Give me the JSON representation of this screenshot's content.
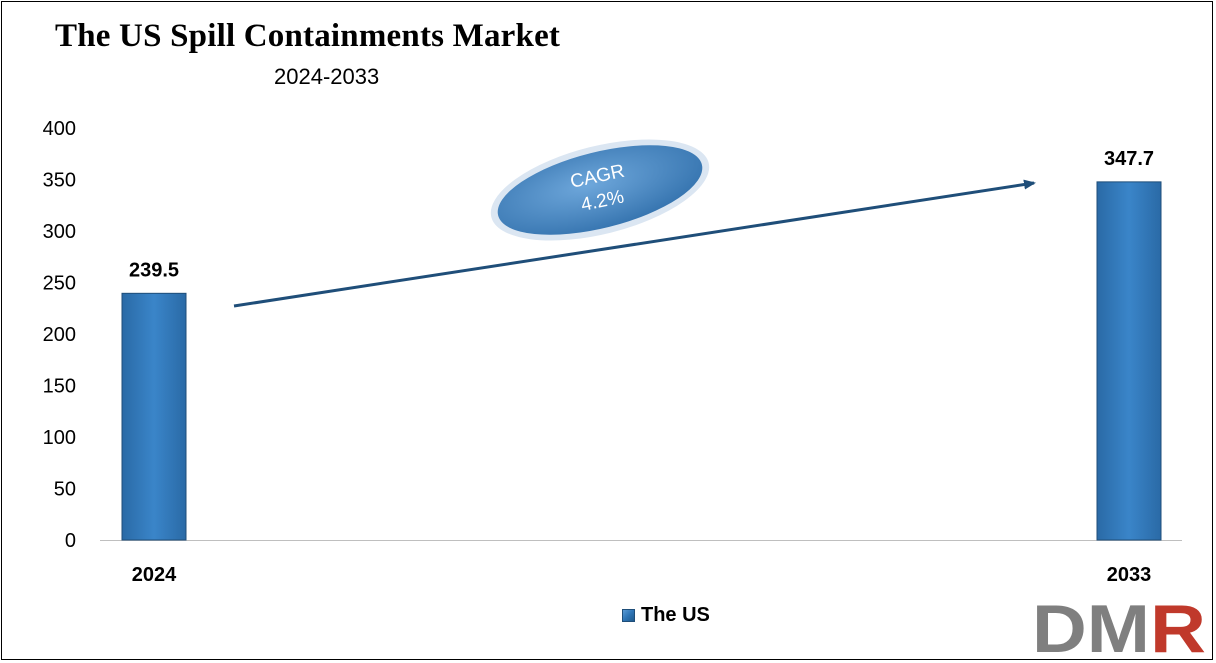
{
  "chart_data": {
    "type": "bar",
    "title": "The US Spill Containments Market",
    "subtitle": "2024-2033",
    "categories": [
      "2024",
      "2033"
    ],
    "series": [
      {
        "name": "The US",
        "values": [
          239.5,
          347.7
        ]
      }
    ],
    "data_labels": [
      "239.5",
      "347.7"
    ],
    "ylim": [
      0,
      400
    ],
    "yticks": [
      0,
      50,
      100,
      150,
      200,
      250,
      300,
      350,
      400
    ],
    "grid": false,
    "legend_position": "bottom",
    "annotation": {
      "line1": "CAGR",
      "line2": "4.2%"
    }
  },
  "colors": {
    "bar": "#2e75b6",
    "bar_dark": "#1f4e79",
    "arrow": "#1f4e79",
    "ellipse": "#4a86c5",
    "logo_dm": "#7f7f7f",
    "logo_r": "#c0392b"
  },
  "logo": {
    "text_dm": "DM",
    "text_r": "R"
  }
}
